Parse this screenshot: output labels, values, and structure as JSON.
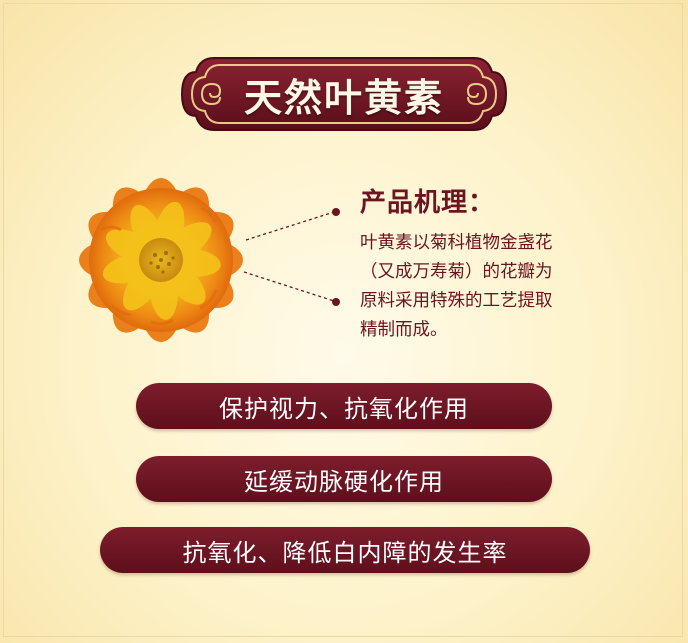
{
  "banner": {
    "title": "天然叶黄素"
  },
  "description": {
    "heading": "产品机理：",
    "lines": [
      "叶黄素以菊科植物金盏花",
      "（又成万寿菊）的花瓣为",
      "原料采用特殊的工艺提取",
      "精制而成。"
    ]
  },
  "benefits": [
    "保护视力、抗氧化作用",
    "延缓动脉硬化作用",
    "抗氧化、降低白内障的发生率"
  ],
  "colors": {
    "maroon": "#6b1520",
    "background": "#fdf2c9",
    "banner_text": "#fff8e6"
  }
}
